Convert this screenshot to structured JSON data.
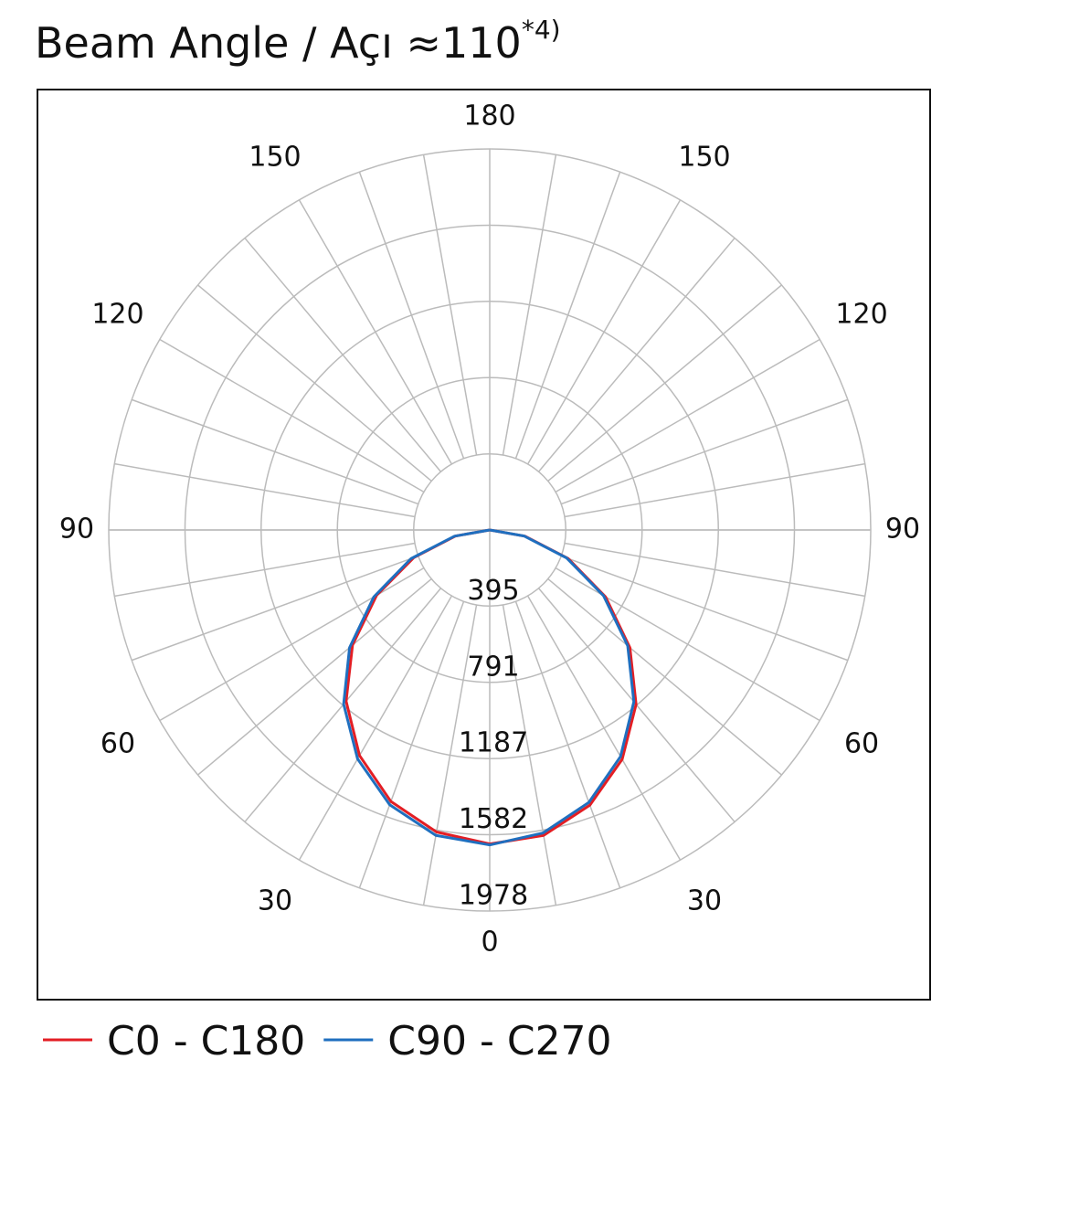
{
  "chart_data": {
    "type": "polar",
    "title": "Beam Angle / Açı ≈110",
    "title_note": "*4)",
    "angles": [
      -90,
      -80,
      -70,
      -60,
      -50,
      -40,
      -30,
      -20,
      -10,
      0,
      10,
      20,
      30,
      40,
      50,
      60,
      70,
      80,
      90
    ],
    "angle_ticks": [
      0,
      30,
      60,
      90,
      120,
      150,
      180
    ],
    "rlim": [
      0,
      1978
    ],
    "rticks": [
      395,
      791,
      1187,
      1582,
      1978
    ],
    "grid": true,
    "series": [
      {
        "name": "C0 - C180",
        "color": "#e31e24",
        "values": [
          0,
          180,
          420,
          678,
          930,
          1160,
          1352,
          1500,
          1592,
          1630,
          1610,
          1520,
          1375,
          1182,
          950,
          694,
          433,
          186,
          0
        ]
      },
      {
        "name": "C90 - C270",
        "color": "#1f6fbf",
        "values": [
          0,
          186,
          435,
          695,
          950,
          1180,
          1372,
          1518,
          1610,
          1635,
          1597,
          1505,
          1358,
          1164,
          935,
          682,
          425,
          182,
          0
        ]
      }
    ]
  }
}
